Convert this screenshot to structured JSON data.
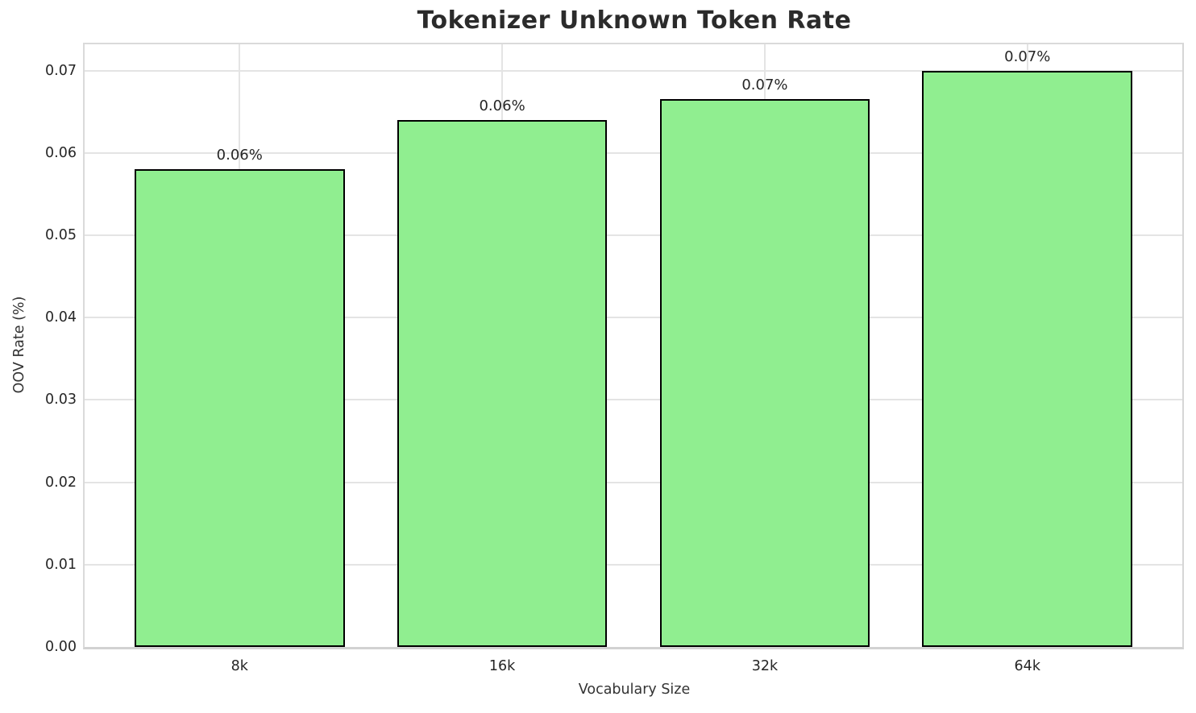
{
  "chart_data": {
    "type": "bar",
    "title": "Tokenizer Unknown Token Rate",
    "xlabel": "Vocabulary Size",
    "ylabel": "OOV Rate (%)",
    "categories": [
      "8k",
      "16k",
      "32k",
      "64k"
    ],
    "values": [
      0.058,
      0.064,
      0.0665,
      0.07
    ],
    "bar_labels": [
      "0.06%",
      "0.06%",
      "0.07%",
      "0.07%"
    ],
    "yticks": [
      0.0,
      0.01,
      0.02,
      0.03,
      0.04,
      0.05,
      0.06,
      0.07
    ],
    "ytick_labels": [
      "0.00",
      "0.01",
      "0.02",
      "0.03",
      "0.04",
      "0.05",
      "0.06",
      "0.07"
    ],
    "ylim": [
      0,
      0.0732
    ],
    "grid": true,
    "legend": "none",
    "bar_color": "#90EE90",
    "bar_edge_color": "#000000",
    "colors": {
      "background": "#ffffff",
      "gridline": "#e4e4e4",
      "spine": "#d6d6d6",
      "title_text": "#2b2b2b",
      "tick_text": "#262626",
      "axis_label_text": "#333333"
    }
  }
}
